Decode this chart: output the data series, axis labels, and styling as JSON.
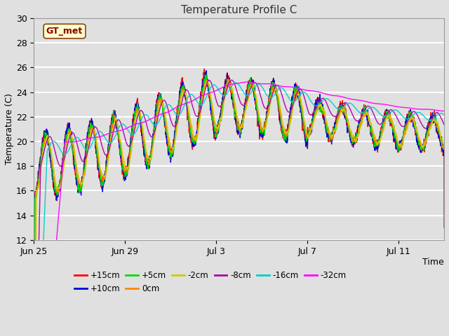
{
  "title": "Temperature Profile C",
  "xlabel": "Time",
  "ylabel": "Temperature (C)",
  "ylim": [
    12,
    30
  ],
  "xlim_days": 18,
  "annotation_label": "GT_met",
  "series": [
    {
      "label": "+15cm",
      "color": "#ff0000",
      "lw": 1.0
    },
    {
      "label": "+10cm",
      "color": "#0000dd",
      "lw": 1.0
    },
    {
      "label": "+5cm",
      "color": "#00dd00",
      "lw": 1.0
    },
    {
      "label": "0cm",
      "color": "#ff8800",
      "lw": 1.0
    },
    {
      "label": "-2cm",
      "color": "#cccc00",
      "lw": 1.0
    },
    {
      "label": "-8cm",
      "color": "#aa00aa",
      "lw": 1.0
    },
    {
      "label": "-16cm",
      "color": "#00cccc",
      "lw": 1.0
    },
    {
      "label": "-32cm",
      "color": "#ff00ff",
      "lw": 1.0
    }
  ],
  "xtick_positions": [
    0,
    4,
    8,
    12,
    16
  ],
  "xtick_labels": [
    "Jun 25",
    "Jun 29",
    "Jul 3",
    "Jul 7",
    "Jul 11"
  ],
  "ytick_positions": [
    12,
    14,
    16,
    18,
    20,
    22,
    24,
    26,
    28,
    30
  ],
  "bg_color": "#e0e0e0",
  "plot_bg_color": "#e0e0e0",
  "grid_color": "#ffffff",
  "n_points": 4000,
  "seed": 42
}
